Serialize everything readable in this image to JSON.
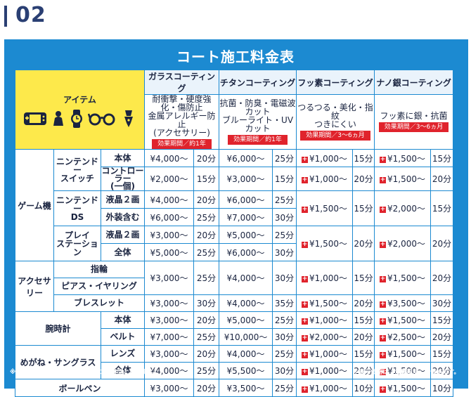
{
  "header": {
    "number": "02"
  },
  "title": "コート施工料金表",
  "table": {
    "item_header": "アイテム",
    "icons": [
      "game-console-icon",
      "figure-icon",
      "watch-icon",
      "glasses-icon",
      "pen-icon"
    ],
    "coatings": [
      {
        "name": "ガラスコーティング",
        "desc": [
          "耐衝撃・硬度強化・傷防止",
          "金属アレルギー防止",
          "(アクセサリー)"
        ],
        "effect": "効果期間／約1年"
      },
      {
        "name": "チタンコーティング",
        "desc": [
          "抗菌・防臭・電磁波カット",
          "ブルーライト・UVカット"
        ],
        "effect": "効果期間／約1年"
      },
      {
        "name": "フッ素コーティング",
        "desc": [
          "つるつる・美化・指紋",
          "つきにくい"
        ],
        "effect": "効果期間／3～6ヵ月"
      },
      {
        "name": "ナノ銀コーティング",
        "desc": [
          "フッ素に銀・抗菌"
        ],
        "effect": "効果期間／3～6ヵ月"
      }
    ],
    "cats": {
      "game": "ゲーム機",
      "switch": "ニンテンドー\nスイッチ",
      "ds": "ニンテンドー\nDS",
      "ps": "プレイ\nステーション",
      "accessory": "アクセサリー",
      "watch": "腕時計",
      "glasses": "めがね・サングラス",
      "pen": "ボールペン"
    },
    "parts": {
      "body": "本体",
      "controller": "コントローラー\n(一個)",
      "lcd2": "液晶２画",
      "outer": "外装含む",
      "lcd2b": "液晶２画",
      "whole": "全体",
      "ring": "指輪",
      "pierce": "ピアス・イヤリング",
      "bracelet": "ブレスレット",
      "wbody": "本体",
      "belt": "ベルト",
      "lens": "レンズ",
      "gwhole": "全体"
    },
    "rows": {
      "sw_body": {
        "g": [
          "¥4,000～",
          "20分"
        ],
        "t": [
          "¥6,000～",
          "25分"
        ],
        "f": [
          "¥1,000～",
          "15分"
        ],
        "n": [
          "¥1,500～",
          "15分"
        ]
      },
      "sw_ctrl": {
        "g": [
          "¥2,000～",
          "15分"
        ],
        "t": [
          "¥3,000～",
          "15分"
        ],
        "f": [
          "¥1,000～",
          "20分"
        ],
        "n": [
          "¥1,500～",
          "20分"
        ]
      },
      "ds_lcd": {
        "g": [
          "¥4,000～",
          "20分"
        ],
        "t": [
          "¥6,000～",
          "25分"
        ]
      },
      "ds_out": {
        "g": [
          "¥6,000～",
          "25分"
        ],
        "t": [
          "¥7,000～",
          "30分"
        ]
      },
      "ds_merged": {
        "f": [
          "¥1,500～",
          "15分"
        ],
        "n": [
          "¥2,000～",
          "15分"
        ]
      },
      "ps_lcd": {
        "g": [
          "¥3,000～",
          "20分"
        ],
        "t": [
          "¥5,000～",
          "25分"
        ]
      },
      "ps_whole": {
        "g": [
          "¥5,000～",
          "25分"
        ],
        "t": [
          "¥6,000～",
          "30分"
        ]
      },
      "ps_merged": {
        "f": [
          "¥1,500～",
          "20分"
        ],
        "n": [
          "¥2,000～",
          "20分"
        ]
      },
      "acc_merged": {
        "g": [
          "¥3,000～",
          "25分"
        ],
        "t": [
          "¥4,000～",
          "30分"
        ],
        "f": [
          "¥1,000～",
          "15分"
        ],
        "n": [
          "¥1,500～",
          "20分"
        ]
      },
      "bracelet": {
        "g": [
          "¥3,000～",
          "30分"
        ],
        "t": [
          "¥4,000～",
          "35分"
        ],
        "f": [
          "¥1,500～",
          "20分"
        ],
        "n": [
          "¥3,500～",
          "30分"
        ]
      },
      "w_body": {
        "g": [
          "¥3,000～",
          "20分"
        ],
        "t": [
          "¥5,000～",
          "25分"
        ],
        "f": [
          "¥1,000～",
          "15分"
        ],
        "n": [
          "¥1,500～",
          "15分"
        ]
      },
      "w_belt": {
        "g": [
          "¥7,000～",
          "25分"
        ],
        "t": [
          "¥10,000～",
          "30分"
        ],
        "f": [
          "¥2,000～",
          "20分"
        ],
        "n": [
          "¥2,500～",
          "20分"
        ]
      },
      "gl_lens": {
        "g": [
          "¥3,000～",
          "20分"
        ],
        "t": [
          "¥4,000～",
          "25分"
        ],
        "f": [
          "¥1,000～",
          "15分"
        ],
        "n": [
          "¥1,500～",
          "15分"
        ]
      },
      "gl_whole": {
        "g": [
          "¥4,000～",
          "25分"
        ],
        "t": [
          "¥5,500～",
          "30分"
        ],
        "f": [
          "¥1,000～",
          "20分"
        ],
        "n": [
          "¥1,500～",
          "20分"
        ]
      },
      "pen": {
        "g": [
          "¥3,000～",
          "20分"
        ],
        "t": [
          "¥3,500～",
          "25分"
        ],
        "f": [
          "¥1,000～",
          "10分"
        ],
        "n": [
          "¥1,500～",
          "10分"
        ]
      }
    }
  },
  "footer": {
    "left": "※完全硬化するまで約２週間から２０日間となります。",
    "right": "※表示価格は「消費税別」の価格です。"
  },
  "colors": {
    "panel": "#1c8ad1",
    "item_header": "#fde94b",
    "effect_badge": "#e0232c",
    "header_text": "#2a3f73"
  }
}
